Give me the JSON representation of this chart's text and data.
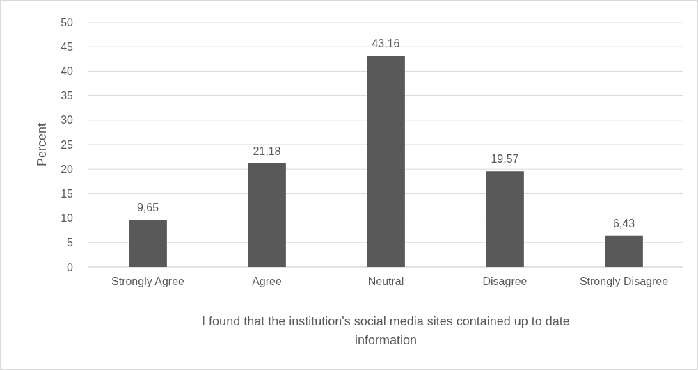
{
  "chart_data": {
    "type": "bar",
    "xlabel": "I found that the institution's social media sites contained up to date information",
    "ylabel": "Percent",
    "categories": [
      "Strongly Agree",
      "Agree",
      "Neutral",
      "Disagree",
      "Strongly Disagree"
    ],
    "values": [
      9.65,
      21.18,
      43.16,
      19.57,
      6.43
    ],
    "color": "#595959",
    "value_labels": [
      "9,65",
      "21,18",
      "43,16",
      "19,57",
      "6,43"
    ],
    "ylim": [
      0,
      50
    ],
    "yticks": [
      0,
      5,
      10,
      15,
      20,
      25,
      30,
      35,
      40,
      45,
      50
    ],
    "grid": "y"
  }
}
